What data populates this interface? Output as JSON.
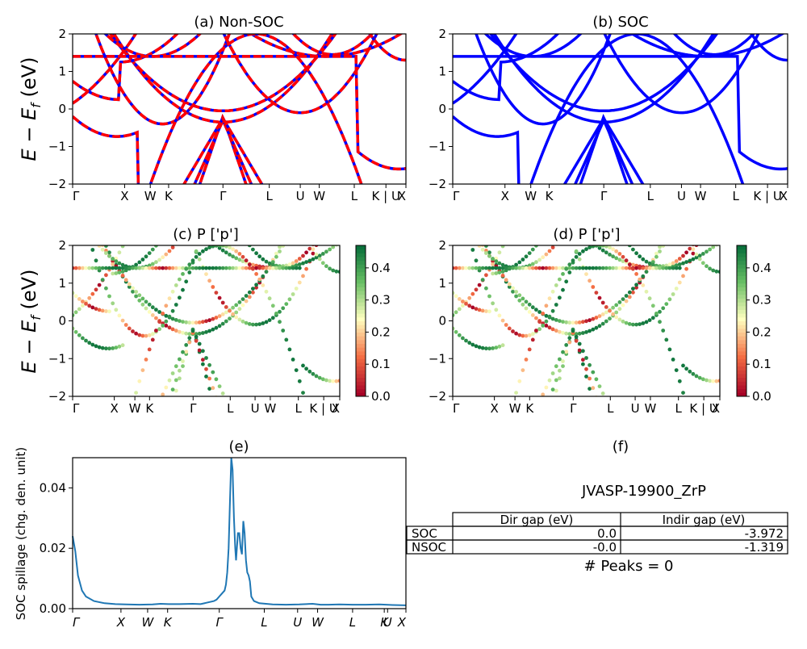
{
  "k_labels": [
    "Γ",
    "X",
    "W",
    "K",
    "Γ",
    "L",
    "U",
    "W",
    "L",
    "K | U",
    "X"
  ],
  "spill_k_labels": [
    "Γ",
    "X",
    "W",
    "K",
    "Γ",
    "L",
    "U",
    "W",
    "L",
    "K",
    "U",
    "X"
  ],
  "band_ylabel": "E − E_f (eV)",
  "colors": {
    "soc": "#0000ff",
    "nsoc": "#ff0000",
    "spillage": "#1f77b4"
  },
  "chart_data": [
    {
      "id": "a",
      "type": "line",
      "title": "(a) Non-SOC",
      "ylim": [
        -2,
        2
      ],
      "yticks": [
        -2,
        -1,
        0,
        1,
        2
      ],
      "series": [],
      "note_style": "red dashed over blue"
    },
    {
      "id": "b",
      "type": "line",
      "title": "(b) SOC",
      "ylim": [
        -2,
        2
      ],
      "yticks": [
        -2,
        -1,
        0,
        1,
        2
      ],
      "series": []
    },
    {
      "id": "c",
      "type": "scatter",
      "title": "(c)  P ['p']",
      "ylim": [
        -2,
        2
      ],
      "yticks": [
        -2,
        -1,
        0,
        1,
        2
      ],
      "colorbar": {
        "min": 0.0,
        "max": 0.47,
        "ticks": [
          "0.0",
          "0.1",
          "0.2",
          "0.3",
          "0.4"
        ],
        "colormap": "RdYlGn"
      }
    },
    {
      "id": "d",
      "type": "scatter",
      "title": "(d) P ['p']",
      "ylim": [
        -2,
        2
      ],
      "yticks": [
        -2,
        -1,
        0,
        1,
        2
      ],
      "colorbar": {
        "min": 0.0,
        "max": 0.47,
        "ticks": [
          "0.0",
          "0.1",
          "0.2",
          "0.3",
          "0.4"
        ],
        "colormap": "RdYlGn"
      }
    },
    {
      "id": "e",
      "type": "line",
      "title": "(e)",
      "ylabel": "SOC spillage (chg. den. unit)",
      "ylim": [
        0,
        0.05
      ],
      "yticks": [
        "0.00",
        "0.02",
        "0.04"
      ],
      "series": [
        {
          "name": "",
          "points": [
            [
              0,
              0.024
            ],
            [
              0.01,
              0.019
            ],
            [
              0.02,
              0.011
            ],
            [
              0.035,
              0.006
            ],
            [
              0.05,
              0.004
            ],
            [
              0.08,
              0.0025
            ],
            [
              0.12,
              0.0018
            ],
            [
              0.16,
              0.0015
            ],
            [
              0.2,
              0.0014
            ],
            [
              0.25,
              0.0013
            ],
            [
              0.3,
              0.0014
            ],
            [
              0.33,
              0.0016
            ],
            [
              0.36,
              0.0015
            ],
            [
              0.4,
              0.0015
            ],
            [
              0.45,
              0.0016
            ],
            [
              0.48,
              0.0015
            ],
            [
              0.53,
              0.0025
            ],
            [
              0.54,
              0.003
            ],
            [
              0.55,
              0.004
            ],
            [
              0.56,
              0.005
            ],
            [
              0.57,
              0.006
            ],
            [
              0.575,
              0.008
            ],
            [
              0.58,
              0.012
            ],
            [
              0.585,
              0.02
            ],
            [
              0.59,
              0.035
            ],
            [
              0.595,
              0.05
            ],
            [
              0.6,
              0.046
            ],
            [
              0.605,
              0.03
            ],
            [
              0.61,
              0.02
            ],
            [
              0.613,
              0.016
            ],
            [
              0.62,
              0.025
            ],
            [
              0.625,
              0.025
            ],
            [
              0.63,
              0.02
            ],
            [
              0.635,
              0.018
            ],
            [
              0.64,
              0.029
            ],
            [
              0.645,
              0.025
            ],
            [
              0.65,
              0.016
            ],
            [
              0.655,
              0.012
            ],
            [
              0.66,
              0.011
            ],
            [
              0.665,
              0.009
            ],
            [
              0.67,
              0.004
            ],
            [
              0.68,
              0.0025
            ],
            [
              0.7,
              0.0018
            ],
            [
              0.75,
              0.0014
            ],
            [
              0.8,
              0.0013
            ],
            [
              0.85,
              0.0014
            ],
            [
              0.9,
              0.0016
            ],
            [
              0.93,
              0.0013
            ],
            [
              0.96,
              0.0013
            ],
            [
              1.0,
              0.0014
            ],
            [
              1.05,
              0.0013
            ],
            [
              1.1,
              0.0013
            ],
            [
              1.15,
              0.0014
            ],
            [
              1.2,
              0.0012
            ],
            [
              1.25,
              0.0011
            ]
          ]
        }
      ]
    }
  ],
  "info": {
    "title": "(f)",
    "material": "JVASP-19900_ZrP",
    "headers": [
      "Dir gap (eV)",
      "Indir gap (eV)"
    ],
    "rows": [
      {
        "label": "SOC",
        "dir": "0.0",
        "indir": "-3.972"
      },
      {
        "label": "NSOC",
        "dir": "-0.0",
        "indir": "-1.319"
      }
    ],
    "peaks": "# Peaks = 0"
  }
}
